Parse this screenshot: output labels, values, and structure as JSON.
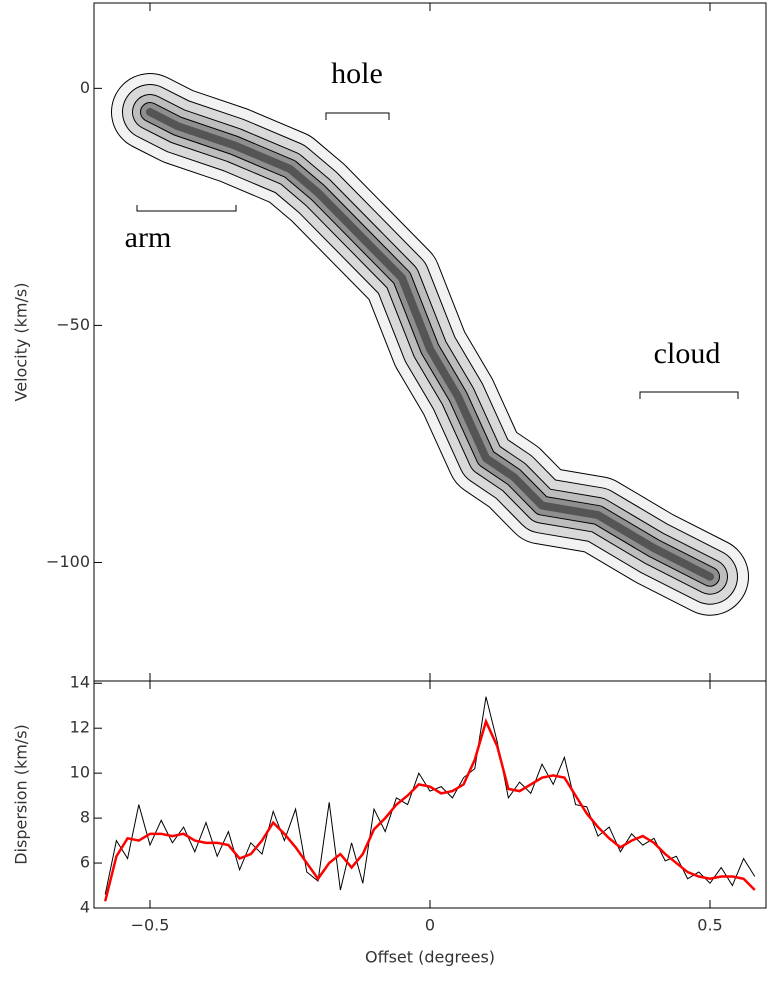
{
  "chart_data": [
    {
      "type": "contour",
      "ylabel": "Velocity (km/s)",
      "annotations": [
        "arm",
        "hole",
        "cloud"
      ],
      "x": [
        -0.5,
        -0.45,
        -0.35,
        -0.25,
        -0.2,
        -0.05,
        0,
        0.05,
        0.1,
        0.15,
        0.2,
        0.3,
        0.4,
        0.5
      ],
      "values": [
        -5,
        -8,
        -12,
        -17,
        -22,
        -40,
        -55,
        -65,
        -78,
        -82,
        -88,
        -90,
        -97,
        -103
      ],
      "xlim": [
        -0.6,
        0.6
      ],
      "xticks": [
        -0.5,
        0,
        0.5
      ],
      "ylim": [
        -125,
        18
      ],
      "yticks": [
        {
          "value": -100,
          "label": "−100"
        },
        {
          "value": -50,
          "label": "−50"
        },
        0
      ]
    },
    {
      "type": "line",
      "xlabel": "Offset (degrees)",
      "ylabel": "Dispersion (km/s)",
      "x": [
        -0.58,
        -0.56,
        -0.54,
        -0.52,
        -0.5,
        -0.48,
        -0.46,
        -0.44,
        -0.42,
        -0.4,
        -0.38,
        -0.36,
        -0.34,
        -0.32,
        -0.3,
        -0.28,
        -0.26,
        -0.24,
        -0.22,
        -0.2,
        -0.18,
        -0.16,
        -0.14,
        -0.12,
        -0.1,
        -0.08,
        -0.06,
        -0.04,
        -0.02,
        0,
        0.02,
        0.04,
        0.06,
        0.08,
        0.1,
        0.12,
        0.14,
        0.16,
        0.18,
        0.2,
        0.22,
        0.24,
        0.26,
        0.28,
        0.3,
        0.32,
        0.34,
        0.36,
        0.38,
        0.4,
        0.42,
        0.44,
        0.46,
        0.48,
        0.5,
        0.52,
        0.54,
        0.56,
        0.58
      ],
      "series": [
        {
          "color": "#000000",
          "values": [
            4.6,
            7.0,
            6.2,
            8.6,
            6.8,
            7.9,
            6.9,
            7.6,
            6.5,
            7.8,
            6.3,
            7.4,
            5.7,
            6.9,
            6.4,
            8.3,
            7.0,
            8.4,
            5.6,
            5.2,
            8.7,
            4.8,
            6.9,
            5.1,
            8.4,
            7.4,
            8.9,
            8.6,
            10.0,
            9.2,
            9.4,
            8.9,
            9.8,
            10.2,
            13.4,
            11.4,
            8.9,
            9.6,
            9.1,
            10.4,
            9.5,
            10.7,
            8.6,
            8.5,
            7.2,
            7.6,
            6.5,
            7.3,
            6.8,
            7.1,
            6.1,
            6.3,
            5.3,
            5.6,
            5.1,
            5.8,
            5.0,
            6.2,
            5.4
          ]
        },
        {
          "color": "#ff0000",
          "values": [
            4.3,
            6.3,
            7.1,
            7.0,
            7.3,
            7.3,
            7.2,
            7.3,
            7.0,
            6.9,
            6.9,
            6.8,
            6.2,
            6.4,
            7.0,
            7.8,
            7.3,
            6.7,
            6.0,
            5.3,
            6.0,
            6.4,
            5.8,
            6.4,
            7.5,
            8.0,
            8.6,
            9.0,
            9.5,
            9.4,
            9.1,
            9.2,
            9.5,
            10.6,
            12.3,
            11.2,
            9.3,
            9.2,
            9.5,
            9.8,
            9.9,
            9.8,
            9.0,
            8.2,
            7.6,
            7.1,
            6.7,
            7.0,
            7.2,
            6.9,
            6.4,
            6.0,
            5.6,
            5.4,
            5.3,
            5.4,
            5.4,
            5.3,
            4.8
          ]
        }
      ],
      "xlim": [
        -0.6,
        0.6
      ],
      "xticks": [
        {
          "value": -0.5,
          "label": "−0.5"
        },
        0,
        0.5
      ],
      "ylim": [
        4,
        14.1
      ],
      "yticks": [
        4,
        6,
        8,
        10,
        12,
        14
      ]
    }
  ]
}
